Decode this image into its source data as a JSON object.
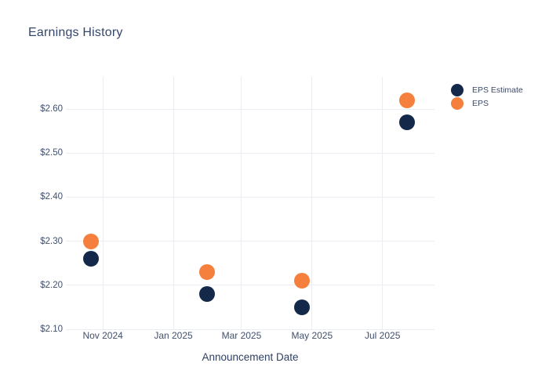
{
  "title": "Earnings History",
  "colors": {
    "background": "#ffffff",
    "title_text": "#35466b",
    "tick_text": "#42506b",
    "axis_title_text": "#2f4162",
    "gridline": "#e9eef5",
    "eps_estimate": "#14294a",
    "eps": "#f5803e"
  },
  "legend": {
    "items": [
      {
        "label": "EPS Estimate",
        "color": "#14294a",
        "series": "EPS Estimate"
      },
      {
        "label": "EPS",
        "color": "#f5803e",
        "series": "EPS"
      }
    ]
  },
  "chart_data": {
    "type": "scatter",
    "title": "Earnings History",
    "xlabel": "Announcement Date",
    "ylabel": "",
    "grid": true,
    "legend_position": "outside-top-right",
    "x_domain": [
      "2024-09-30",
      "2025-08-15"
    ],
    "ylim": [
      2.1,
      2.673
    ],
    "y_ticks": [
      {
        "value": 2.1,
        "label": "$2.10"
      },
      {
        "value": 2.2,
        "label": "$2.20"
      },
      {
        "value": 2.3,
        "label": "$2.30"
      },
      {
        "value": 2.4,
        "label": "$2.40"
      },
      {
        "value": 2.5,
        "label": "$2.50"
      },
      {
        "value": 2.6,
        "label": "$2.60"
      }
    ],
    "x_ticks": [
      {
        "date": "2024-11-01",
        "label": "Nov 2024"
      },
      {
        "date": "2025-01-01",
        "label": "Jan 2025"
      },
      {
        "date": "2025-03-01",
        "label": "Mar 2025"
      },
      {
        "date": "2025-05-01",
        "label": "May 2025"
      },
      {
        "date": "2025-07-01",
        "label": "Jul 2025"
      }
    ],
    "series": [
      {
        "name": "EPS Estimate",
        "color": "#14294a",
        "points": [
          {
            "date": "2024-10-22",
            "value": 2.26
          },
          {
            "date": "2025-01-30",
            "value": 2.18
          },
          {
            "date": "2025-04-22",
            "value": 2.15
          },
          {
            "date": "2025-07-22",
            "value": 2.57
          }
        ]
      },
      {
        "name": "EPS",
        "color": "#f5803e",
        "points": [
          {
            "date": "2024-10-22",
            "value": 2.3
          },
          {
            "date": "2025-01-30",
            "value": 2.23
          },
          {
            "date": "2025-04-22",
            "value": 2.21
          },
          {
            "date": "2025-07-22",
            "value": 2.62
          }
        ]
      }
    ]
  }
}
